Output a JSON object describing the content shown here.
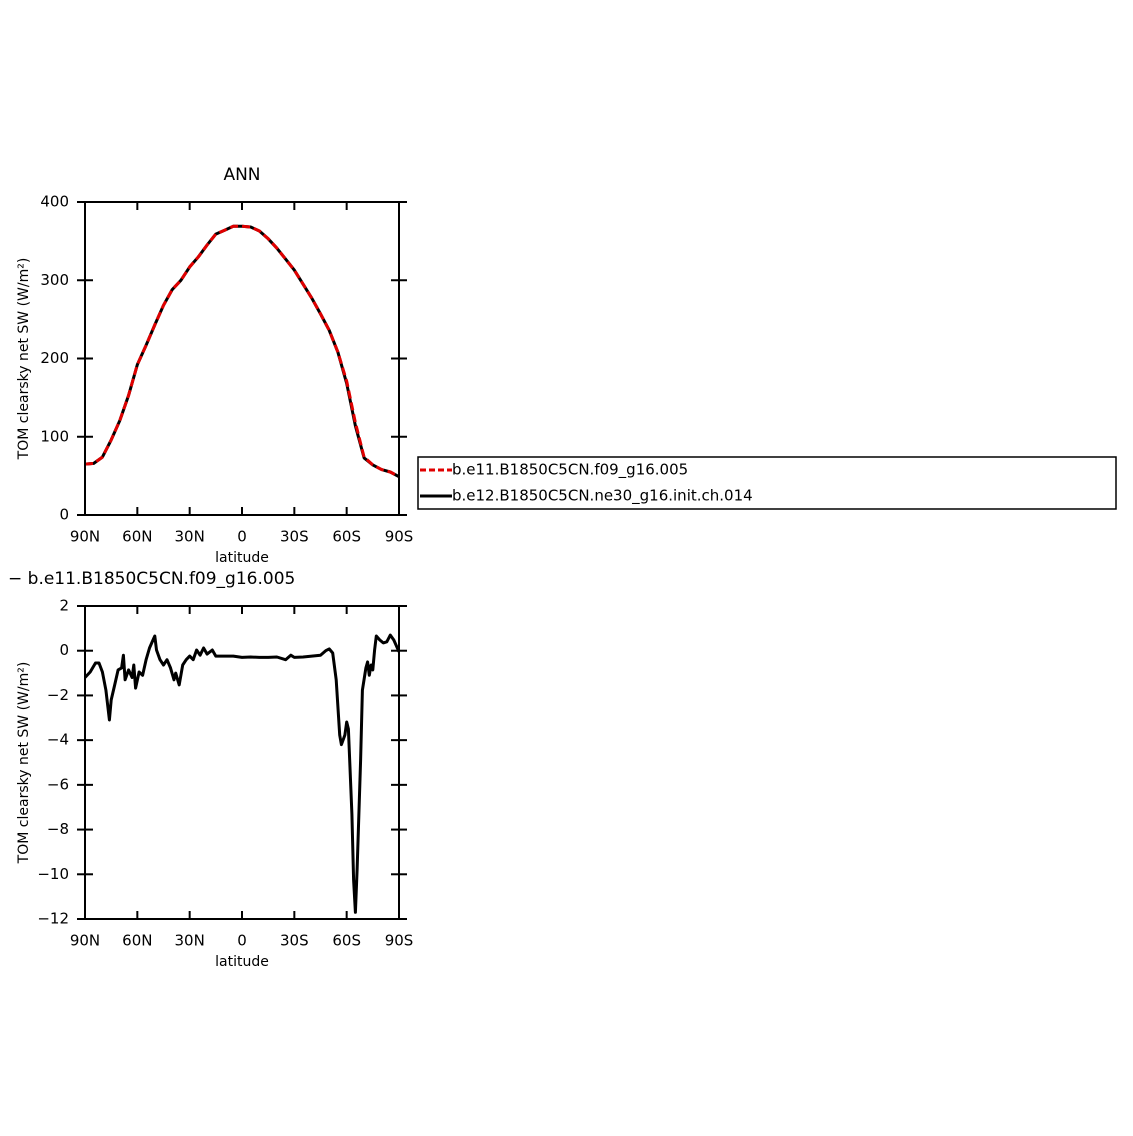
{
  "chart_data": [
    {
      "type": "line",
      "title": "ANN",
      "xlabel": "latitude",
      "ylabel": "TOM clearsky net SW (W/m²)",
      "x": [
        90,
        85,
        80,
        75,
        70,
        65,
        60,
        55,
        50,
        45,
        40,
        35,
        30,
        25,
        20,
        15,
        10,
        5,
        0,
        -5,
        -10,
        -15,
        -20,
        -25,
        -30,
        -35,
        -40,
        -45,
        -50,
        -55,
        -60,
        -65,
        -70,
        -75,
        -80,
        -85,
        -90
      ],
      "series": [
        {
          "name": "b.e11.B1850C5CN.f09_g16.005",
          "color": "#e00000",
          "linestyle": "dashed",
          "values": [
            65,
            66,
            74,
            96,
            121,
            153,
            192,
            217,
            243,
            268,
            288,
            300,
            317,
            330,
            345,
            359,
            364,
            369,
            369,
            368,
            363,
            353,
            341,
            327,
            313,
            295,
            277,
            257,
            236,
            208,
            171,
            118,
            74,
            64,
            58,
            55,
            49
          ]
        },
        {
          "name": "b.e12.B1850C5CN.ne30_g16.init.ch.014",
          "color": "#000000",
          "linestyle": "solid",
          "values": [
            65,
            66,
            74,
            96,
            121,
            153,
            192,
            217,
            243,
            268,
            288,
            300,
            317,
            330,
            345,
            359,
            364,
            369,
            369,
            368,
            363,
            353,
            341,
            327,
            313,
            295,
            277,
            257,
            236,
            208,
            168,
            114,
            73,
            64,
            58,
            55,
            49
          ]
        }
      ],
      "xlim": [
        90,
        -90
      ],
      "xticks": [
        {
          "value": 90,
          "label": "90N"
        },
        {
          "value": 60,
          "label": "60N"
        },
        {
          "value": 30,
          "label": "30N"
        },
        0,
        {
          "value": -30,
          "label": "30S"
        },
        {
          "value": -60,
          "label": "60S"
        },
        {
          "value": -90,
          "label": "90S"
        }
      ],
      "ylim": [
        0,
        400
      ],
      "yticks": [
        0,
        100,
        200,
        300,
        400
      ],
      "legend": "right"
    },
    {
      "type": "line",
      "title": "− b.e11.B1850C5CN.f09_g16.005",
      "xlabel": "latitude",
      "ylabel": "TOM clearsky net SW (W/m²)",
      "x": [
        90,
        87,
        84,
        82,
        80,
        78,
        76,
        75,
        73,
        71,
        69,
        68,
        67,
        65,
        63,
        62,
        61,
        59,
        57,
        55,
        53,
        51,
        50,
        49,
        47,
        45,
        43,
        41,
        39,
        38,
        36,
        34,
        32,
        30,
        28,
        26,
        24,
        22,
        20,
        17,
        15,
        10,
        5,
        0,
        -5,
        -10,
        -15,
        -20,
        -25,
        -28,
        -30,
        -35,
        -40,
        -45,
        -48,
        -50,
        -52,
        -54,
        -56,
        -57,
        -59,
        -60,
        -61,
        -63,
        -64,
        -65,
        -66,
        -68,
        -69,
        -71,
        -72,
        -73,
        -74,
        -75,
        -76,
        -77,
        -79,
        -81,
        -83,
        -85,
        -87,
        -90
      ],
      "color": "#000000",
      "values": [
        -1.2,
        -0.95,
        -0.55,
        -0.55,
        -0.95,
        -1.76,
        -3.1,
        -2.2,
        -1.53,
        -0.86,
        -0.77,
        -0.2,
        -1.3,
        -0.86,
        -1.2,
        -0.64,
        -1.67,
        -0.95,
        -1.1,
        -0.4,
        0.12,
        0.48,
        0.66,
        0.03,
        -0.4,
        -0.64,
        -0.4,
        -0.77,
        -1.3,
        -1.0,
        -1.53,
        -0.64,
        -0.4,
        -0.24,
        -0.4,
        0.03,
        -0.2,
        0.12,
        -0.15,
        0.03,
        -0.24,
        -0.24,
        -0.24,
        -0.3,
        -0.28,
        -0.3,
        -0.3,
        -0.28,
        -0.4,
        -0.2,
        -0.3,
        -0.28,
        -0.24,
        -0.2,
        0,
        0.08,
        -0.1,
        -1.3,
        -3.77,
        -4.2,
        -3.77,
        -3.19,
        -3.5,
        -7.3,
        -10.25,
        -11.7,
        -9.8,
        -4.9,
        -1.76,
        -0.77,
        -0.5,
        -1.1,
        -0.64,
        -0.86,
        0.03,
        0.66,
        0.48,
        0.35,
        0.4,
        0.7,
        0.48,
        -0.05
      ],
      "xlim": [
        90,
        -90
      ],
      "xticks": [
        {
          "value": 90,
          "label": "90N"
        },
        {
          "value": 60,
          "label": "60N"
        },
        {
          "value": 30,
          "label": "30N"
        },
        0,
        {
          "value": -30,
          "label": "30S"
        },
        {
          "value": -60,
          "label": "60S"
        },
        {
          "value": -90,
          "label": "90S"
        }
      ],
      "ylim": [
        -12,
        2
      ],
      "yticks": [
        {
          "value": -12,
          "label": "−12"
        },
        {
          "value": -10,
          "label": "−10"
        },
        {
          "value": -8,
          "label": "−8"
        },
        {
          "value": -6,
          "label": "−6"
        },
        {
          "value": -4,
          "label": "−4"
        },
        {
          "value": -2,
          "label": "−2"
        },
        0,
        2
      ]
    }
  ]
}
